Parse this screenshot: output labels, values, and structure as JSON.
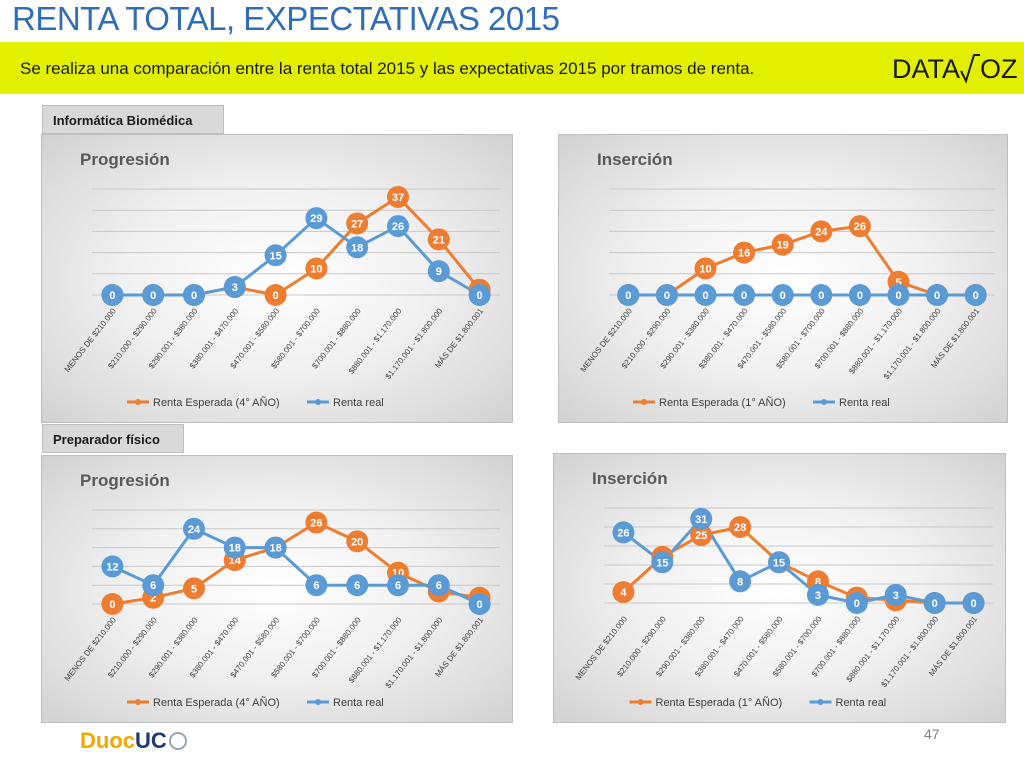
{
  "header": {
    "title": "RENTA TOTAL, EXPECTATIVAS 2015",
    "subtitle": "Se realiza una comparación entre la renta total 2015 y las expectativas 2015 por tramos de renta.",
    "logo_text_left": "DATA",
    "logo_text_right": "OZ"
  },
  "sections": {
    "informatica": "Informática Biomédica",
    "preparador": "Preparador físico"
  },
  "footer": {
    "page_number": "47",
    "brand_a": "Duoc",
    "brand_b": "UC"
  },
  "colors": {
    "expected": "#ed7d31",
    "real": "#5b9bd5",
    "band": "#e2f000",
    "title": "#2f6eb5"
  },
  "chart_data": [
    {
      "id": "ib-progresion",
      "type": "line",
      "title": "Progresión",
      "categories": [
        "MENOS DE $210.000",
        "$210.000 - $290.000",
        "$290.001 - $380.000",
        "$380.001 - $470.000",
        "$470.001 - $580.000",
        "$580.001 - $700.000",
        "$700.001 - $880.000",
        "$880.001 - $1.170.000",
        "$1.170.001 - $1.800.000",
        "MÁS DE $1.800.001"
      ],
      "series": [
        {
          "name": "Renta Esperada (4° AÑO)",
          "color": "#ed7d31",
          "values": [
            0,
            0,
            0,
            3,
            0,
            10,
            27,
            37,
            21,
            2
          ]
        },
        {
          "name": "Renta real",
          "color": "#5b9bd5",
          "values": [
            0,
            0,
            0,
            3,
            15,
            29,
            18,
            26,
            9,
            0
          ]
        }
      ],
      "ylim": [
        0,
        40
      ],
      "grid": true,
      "legend": "bottom"
    },
    {
      "id": "ib-insercion",
      "type": "line",
      "title": "Inserción",
      "categories": [
        "MENOS DE $210.000",
        "$210.000 - $290.000",
        "$290.001 - $380.000",
        "$380.001 - $470.000",
        "$470.001 - $580.000",
        "$580.001 - $700.000",
        "$700.001 - $880.000",
        "$880.001 - $1.170.000",
        "$1.170.001 - $1.800.000",
        "MÁS DE $1.800.001"
      ],
      "series": [
        {
          "name": "Renta Esperada (1° AÑO)",
          "color": "#ed7d31",
          "values": [
            0,
            0,
            10,
            16,
            19,
            24,
            26,
            5,
            0,
            0
          ]
        },
        {
          "name": "Renta real",
          "color": "#5b9bd5",
          "values": [
            0,
            0,
            0,
            0,
            0,
            0,
            0,
            0,
            0,
            0
          ]
        }
      ],
      "ylim": [
        0,
        40
      ],
      "grid": true,
      "legend": "bottom"
    },
    {
      "id": "pf-progresion",
      "type": "line",
      "title": "Progresión",
      "categories": [
        "MENOS DE $210.000",
        "$210.000 - $290.000",
        "$290.001 - $380.000",
        "$380.001 - $470.000",
        "$470.001 - $580.000",
        "$580.001 - $700.000",
        "$700.001 - $880.000",
        "$880.001 - $1.170.000",
        "$1.170.001 - $1.800.000",
        "MÁS DE $1.800.001"
      ],
      "series": [
        {
          "name": "Renta Esperada (4° AÑO)",
          "color": "#ed7d31",
          "values": [
            0,
            2,
            5,
            14,
            18,
            26,
            20,
            10,
            4,
            2
          ]
        },
        {
          "name": "Renta real",
          "color": "#5b9bd5",
          "values": [
            12,
            6,
            24,
            18,
            18,
            6,
            6,
            6,
            6,
            0
          ]
        }
      ],
      "ylim": [
        0,
        30
      ],
      "grid": true,
      "legend": "bottom"
    },
    {
      "id": "pf-insercion",
      "type": "line",
      "title": "Inserción",
      "categories": [
        "MENOS DE $210.000",
        "$210.000 - $290.000",
        "$290.001 - $380.000",
        "$380.001 - $470.000",
        "$470.001 - $580.000",
        "$580.001 - $700.000",
        "$700.001 - $880.000",
        "$880.001 - $1.170.000",
        "$1.170.001 - $1.800.000",
        "MÁS DE $1.800.001"
      ],
      "series": [
        {
          "name": "Renta Esperada (1° AÑO)",
          "color": "#ed7d31",
          "values": [
            4,
            17,
            25,
            28,
            15,
            8,
            2,
            1,
            0,
            0
          ]
        },
        {
          "name": "Renta real",
          "color": "#5b9bd5",
          "values": [
            26,
            15,
            31,
            8,
            15,
            3,
            0,
            3,
            0,
            0
          ]
        }
      ],
      "ylim": [
        0,
        35
      ],
      "grid": true,
      "legend": "bottom"
    }
  ]
}
